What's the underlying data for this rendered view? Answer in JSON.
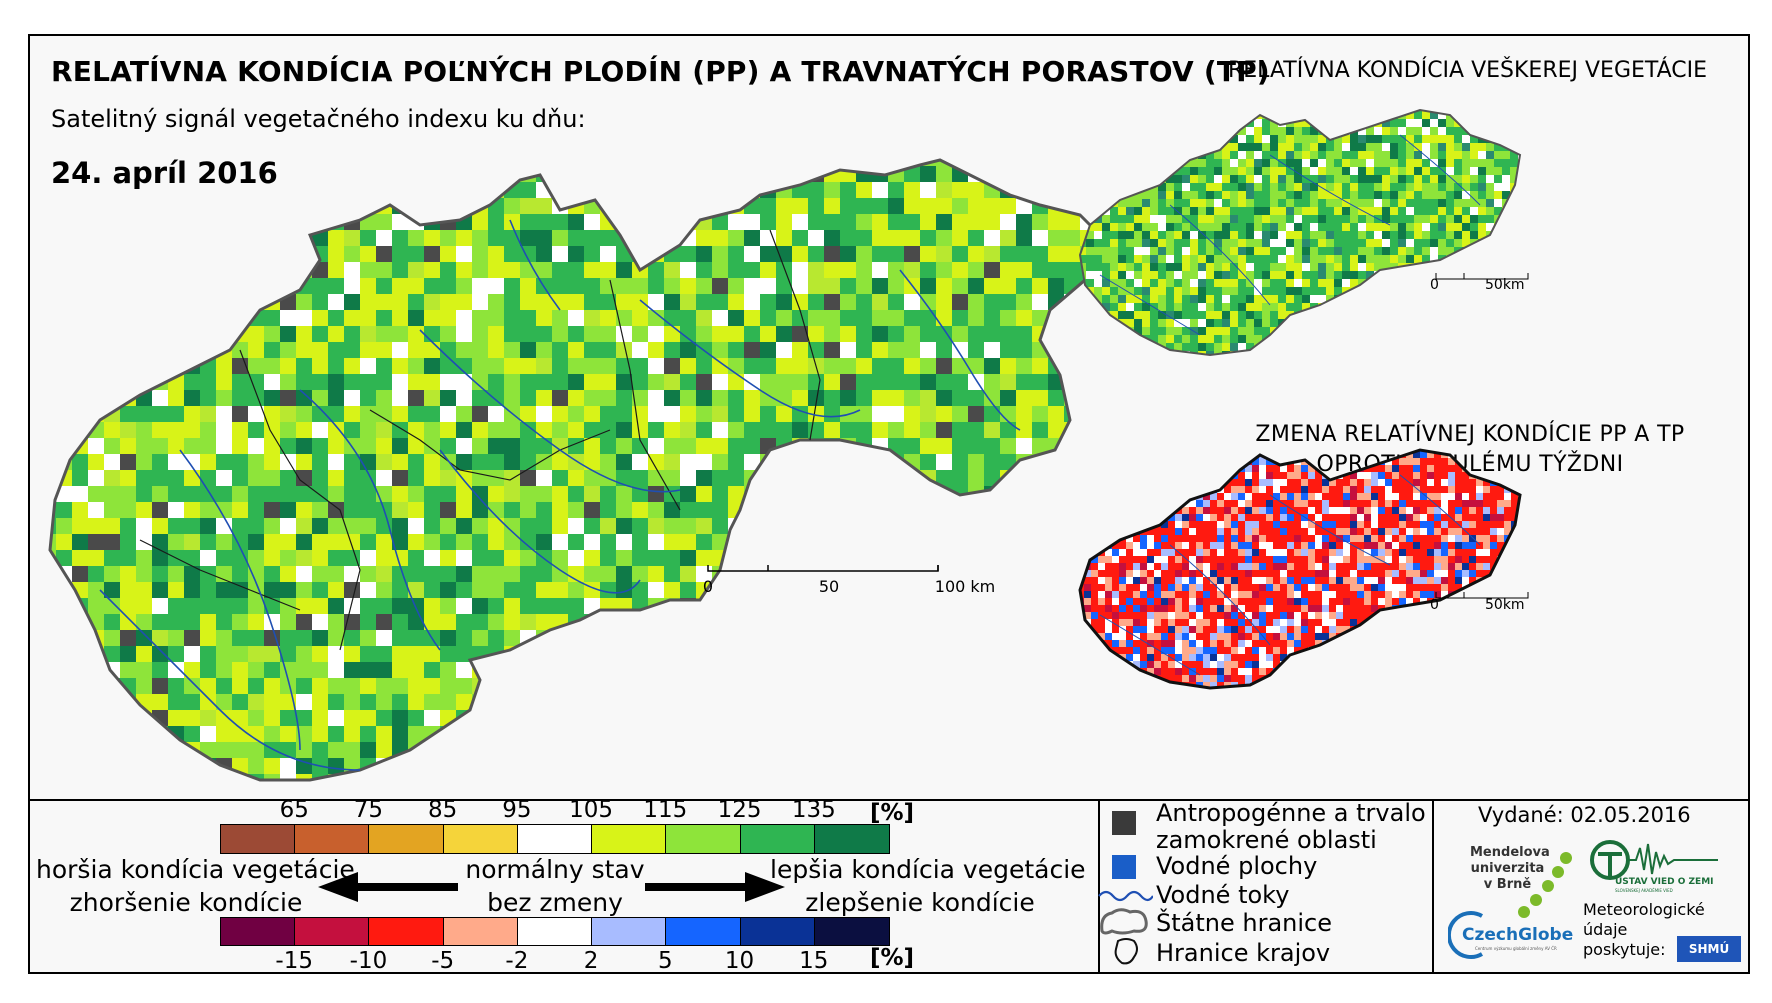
{
  "header": {
    "title": "RELATÍVNA KONDÍCIA POĽNÝCH PLODÍN (PP) A TRAVNATÝCH PORASTOV (TP)",
    "subtitle": "Satelitný signál vegetačného indexu ku dňu:",
    "date": "24. apríl 2016"
  },
  "right_panels": {
    "vegetation_title": "RELATÍVNA KONDÍCIA VEŠKEREJ VEGETÁCIE",
    "change_title_line1": "ZMENA RELATÍVNEJ KONDÍCIE PP A TP",
    "change_title_line2": "OPROTI MINULÉMU TÝŽDNI",
    "scale_zero": "0",
    "scale_end": "50km"
  },
  "main_map": {
    "scale_labels": [
      "0",
      "50",
      "100 km"
    ]
  },
  "legend": {
    "condition_ticks": [
      "65",
      "75",
      "85",
      "95",
      "105",
      "115",
      "125",
      "135"
    ],
    "condition_unit": "[%]",
    "condition_colors": [
      "#9c4a35",
      "#c8602d",
      "#e3a422",
      "#f5d43a",
      "#ffffff",
      "#d8f318",
      "#8ee43a",
      "#2fb552",
      "#0f7a48"
    ],
    "change_ticks": [
      "-15",
      "-10",
      "-5",
      "-2",
      "2",
      "5",
      "10",
      "15"
    ],
    "change_unit": "[%]",
    "change_colors": [
      "#700042",
      "#c4103e",
      "#ff1a10",
      "#ffaa8a",
      "#ffffff",
      "#a8bcff",
      "#1565ff",
      "#0a3296",
      "#0b0f40"
    ],
    "worse_label": "horšia kondícia vegetácie",
    "worse_change_label": "zhoršenie kondície",
    "normal_label": "normálny stav",
    "normal_change_label": "bez zmeny",
    "better_label": "lepšia kondícia vegetácie",
    "better_change_label": "zlepšenie kondície"
  },
  "symbols": {
    "anthropogenic_line1": "Antropogénne a trvalo",
    "anthropogenic_line2": "zamokrené oblasti",
    "water_areas": "Vodné plochy",
    "water_streams": "Vodné toky",
    "state_border": "Štátne hranice",
    "region_border": "Hranice krajov",
    "anthropogenic_color": "#3a3a3a",
    "water_color": "#1a5ec8",
    "stream_color": "#1f4fb3"
  },
  "credits": {
    "issued": "Vydané: 02.05.2016",
    "mendel_line1": "Mendelova",
    "mendel_line2": "univerzita",
    "mendel_line3": "v Brně",
    "czechglobe": "CzechGlobe",
    "czechglobe_sub": "Centrum výzkumu globální změny AV ČR",
    "uvoz": "ÚSTAV VIED O ZEMI",
    "uvoz_sub": "SLOVENSKEJ AKADÉMIE VIED",
    "meteo_line1": "Meteorologické",
    "meteo_line2": "údaje",
    "meteo_line3": "poskytuje:",
    "shmu": "SHMÚ"
  }
}
